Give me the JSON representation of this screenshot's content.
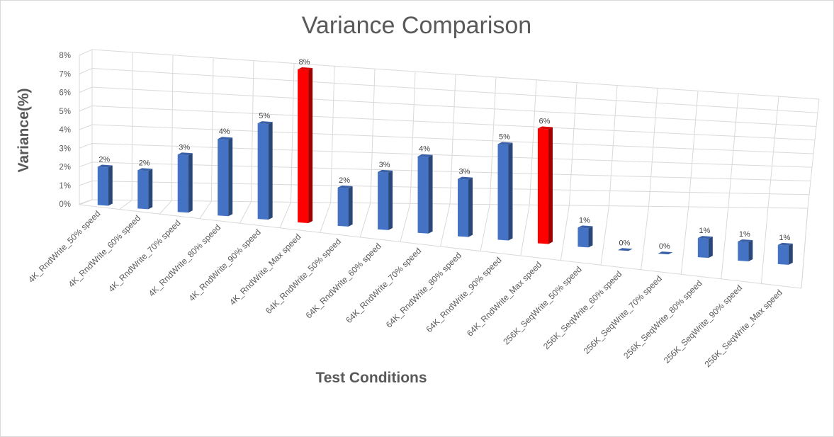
{
  "chart_data": {
    "type": "bar",
    "title": "Variance Comparison",
    "xlabel": "Test Conditions",
    "ylabel": "Variance(%)",
    "ylim": [
      0,
      8
    ],
    "yticks": [
      "0%",
      "1%",
      "2%",
      "3%",
      "4%",
      "5%",
      "6%",
      "7%",
      "8%"
    ],
    "grid": true,
    "legend": "none",
    "categories": [
      "4K_RndWrite_50% speed",
      "4K_RndWrite_60% speed",
      "4K_RndWrite_70% speed",
      "4K_RndWrite_80% speed",
      "4K_RndWrite_90% speed",
      "4K_RndWrite_Max speed",
      "64K_RndWrite_50% speed",
      "64K_RndWrite_60% speed",
      "64K_RndWrite_70% speed",
      "64K_RndWrite_80% speed",
      "64K_RndWrite_90% speed",
      "64K_RndWrite_Max speed",
      "256K_SeqWrite_50% speed",
      "256K_SeqWrite_60% speed",
      "256K_SeqWrite_70% speed",
      "256K_SeqWrite_80% speed",
      "256K_SeqWrite_90% speed",
      "256K_SeqWrite_Max speed"
    ],
    "values": [
      2.0,
      2.0,
      3.0,
      4.0,
      5.0,
      8.0,
      2.0,
      3.0,
      4.0,
      3.0,
      5.0,
      6.0,
      1.0,
      0.0,
      0.0,
      1.0,
      1.0,
      1.0
    ],
    "data_labels": [
      "2%",
      "2%",
      "3%",
      "4%",
      "5%",
      "8%",
      "2%",
      "3%",
      "4%",
      "3%",
      "5%",
      "6%",
      "1%",
      "0%",
      "0%",
      "1%",
      "1%",
      "1%"
    ],
    "colors": {
      "default": "#4472c4",
      "highlight": "#ff0000",
      "highlighted_categories": [
        "4K_RndWrite_Max speed",
        "64K_RndWrite_Max speed"
      ]
    }
  }
}
